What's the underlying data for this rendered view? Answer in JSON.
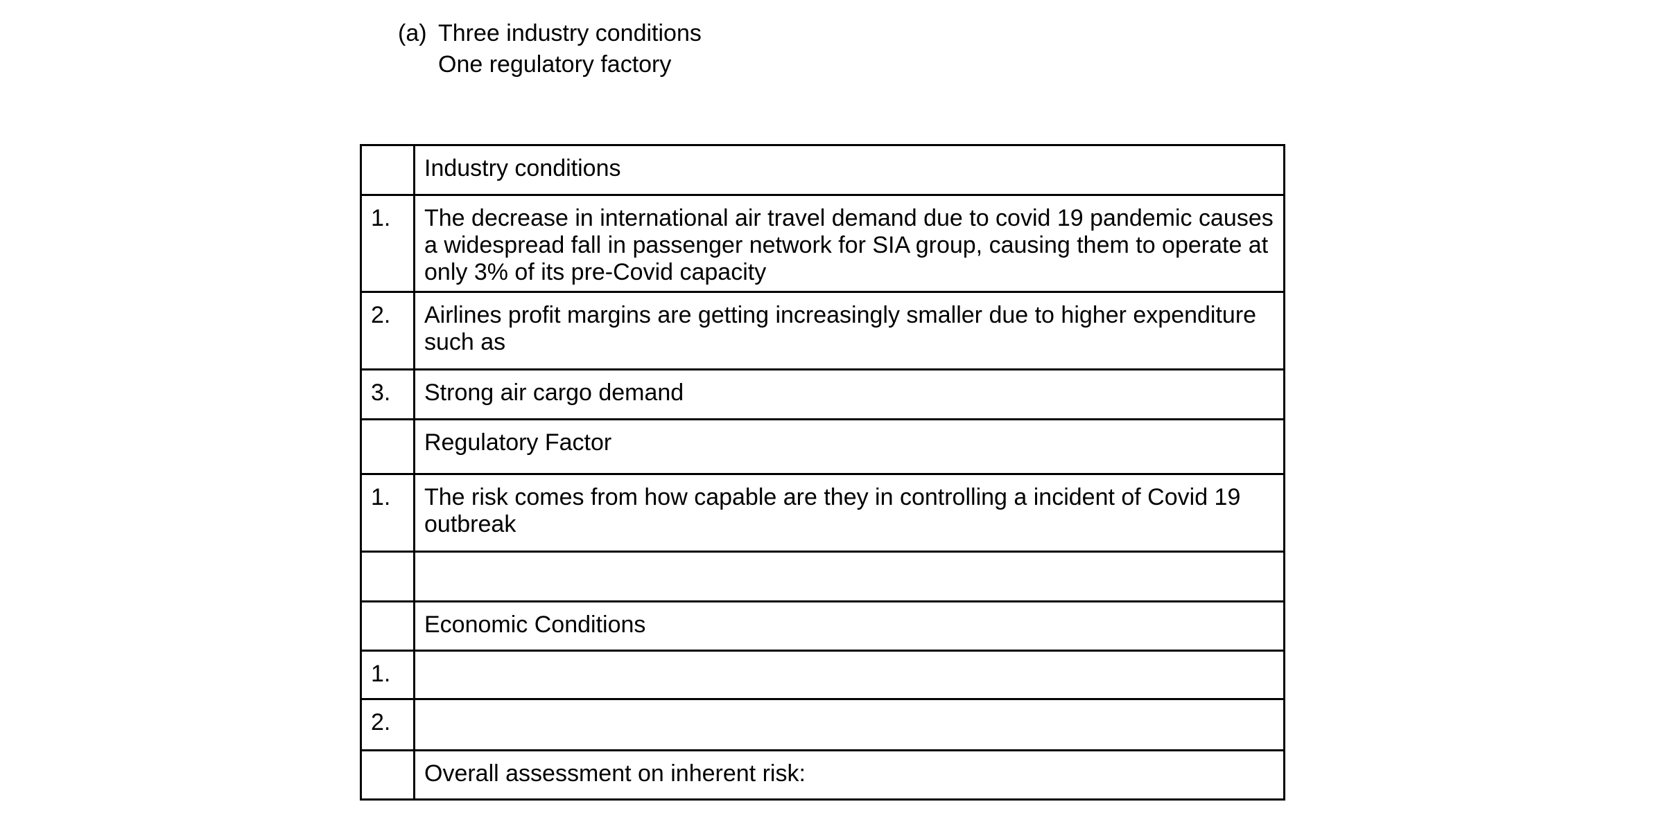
{
  "colors": {
    "background": "#ffffff",
    "text": "#000000",
    "table_border": "#000000"
  },
  "heading": {
    "marker": "(a)",
    "line1": "Three industry conditions",
    "line2": "One regulatory factory"
  },
  "table": {
    "rows": [
      {
        "num": "",
        "text": "Industry conditions"
      },
      {
        "num": "1.",
        "text": "The decrease in international air travel demand due to covid 19 pandemic causes a widespread fall in passenger network for SIA group, causing them to operate at only 3% of its pre-Covid capacity"
      },
      {
        "num": "2.",
        "text": "Airlines profit margins are getting increasingly smaller due to higher expenditure such as"
      },
      {
        "num": "3.",
        "text": "Strong air cargo demand"
      },
      {
        "num": "",
        "text": "Regulatory Factor"
      },
      {
        "num": "1.",
        "text": "The risk comes from how capable are they in controlling a incident of Covid 19 outbreak"
      },
      {
        "num": "",
        "text": ""
      },
      {
        "num": "",
        "text": "Economic Conditions"
      },
      {
        "num": "1.",
        "text": ""
      },
      {
        "num": "2.",
        "text": ""
      },
      {
        "num": "",
        "text": "Overall assessment on inherent risk:"
      }
    ]
  }
}
